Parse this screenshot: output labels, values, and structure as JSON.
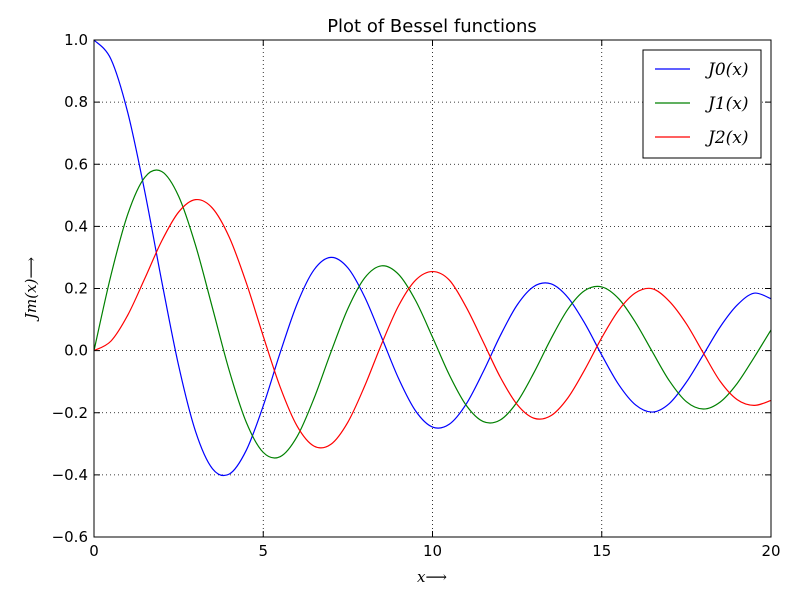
{
  "chart_data": {
    "type": "line",
    "title": "Plot of Bessel functions",
    "xlabel": "x⟶",
    "ylabel": "Jm(x)⟶",
    "xlim": [
      0,
      20
    ],
    "ylim": [
      -0.6,
      1.0
    ],
    "xticks": [
      {
        "value": 0,
        "label": "0"
      },
      {
        "value": 5,
        "label": "5"
      },
      {
        "value": 10,
        "label": "10"
      },
      {
        "value": 15,
        "label": "15"
      },
      {
        "value": 20,
        "label": "20"
      }
    ],
    "yticks": [
      {
        "value": -0.6,
        "label": "−0.6"
      },
      {
        "value": -0.4,
        "label": "−0.4"
      },
      {
        "value": -0.2,
        "label": "−0.2"
      },
      {
        "value": 0.0,
        "label": "0.0"
      },
      {
        "value": 0.2,
        "label": "0.2"
      },
      {
        "value": 0.4,
        "label": "0.4"
      },
      {
        "value": 0.6,
        "label": "0.6"
      },
      {
        "value": 0.8,
        "label": "0.8"
      },
      {
        "value": 1.0,
        "label": "1.0"
      }
    ],
    "grid": true,
    "grid_style": "dotted",
    "legend_position": "top-right",
    "x": [
      0,
      0.5,
      1,
      1.5,
      2,
      2.5,
      3,
      3.5,
      4,
      4.5,
      5,
      5.5,
      6,
      6.5,
      7,
      7.5,
      8,
      8.5,
      9,
      9.5,
      10,
      10.5,
      11,
      11.5,
      12,
      12.5,
      13,
      13.5,
      14,
      14.5,
      15,
      15.5,
      16,
      16.5,
      17,
      17.5,
      18,
      18.5,
      19,
      19.5,
      20
    ],
    "series": [
      {
        "name": "J0(x)",
        "color": "#0000ff",
        "values": [
          1.0,
          0.9385,
          0.7652,
          0.5118,
          0.2239,
          -0.0484,
          -0.2601,
          -0.3801,
          -0.3971,
          -0.3205,
          -0.1776,
          -0.0068,
          0.1506,
          0.2601,
          0.3001,
          0.2663,
          0.1717,
          0.0419,
          -0.0903,
          -0.1939,
          -0.2459,
          -0.2366,
          -0.1712,
          -0.0677,
          0.0477,
          0.1469,
          0.2069,
          0.215,
          0.1711,
          0.0875,
          -0.0142,
          -0.1092,
          -0.1749,
          -0.1977,
          -0.1699,
          -0.1015,
          -0.0134,
          0.0765,
          0.1466,
          0.1849,
          0.167
        ]
      },
      {
        "name": "J1(x)",
        "color": "#008000",
        "values": [
          0.0,
          0.2423,
          0.4401,
          0.5579,
          0.5767,
          0.4971,
          0.3391,
          0.1374,
          -0.066,
          -0.2311,
          -0.3276,
          -0.3414,
          -0.2767,
          -0.1538,
          -0.0047,
          0.1352,
          0.2346,
          0.2731,
          0.2453,
          0.1613,
          0.0435,
          -0.0789,
          -0.1768,
          -0.2284,
          -0.2234,
          -0.1655,
          -0.0703,
          0.038,
          0.1334,
          0.1934,
          0.2051,
          0.1672,
          0.0904,
          -0.0047,
          -0.0977,
          -0.1645,
          -0.188,
          -0.1653,
          -0.1057,
          -0.0222,
          0.0668
        ]
      },
      {
        "name": "J2(x)",
        "color": "#ff0000",
        "values": [
          0.0,
          0.0306,
          0.1149,
          0.2321,
          0.3528,
          0.4461,
          0.4861,
          0.4586,
          0.3641,
          0.2178,
          0.0466,
          -0.1173,
          -0.2429,
          -0.3074,
          -0.3014,
          -0.2303,
          -0.113,
          0.0223,
          0.1448,
          0.2268,
          0.2546,
          0.2268,
          0.139,
          0.0279,
          -0.0849,
          -0.1734,
          -0.2177,
          -0.2093,
          -0.152,
          -0.0609,
          0.0416,
          0.13,
          0.1862,
          0.199,
          0.1584,
          0.0863,
          -0.0075,
          -0.0991,
          -0.1578,
          -0.1763,
          -0.1603
        ]
      }
    ]
  }
}
